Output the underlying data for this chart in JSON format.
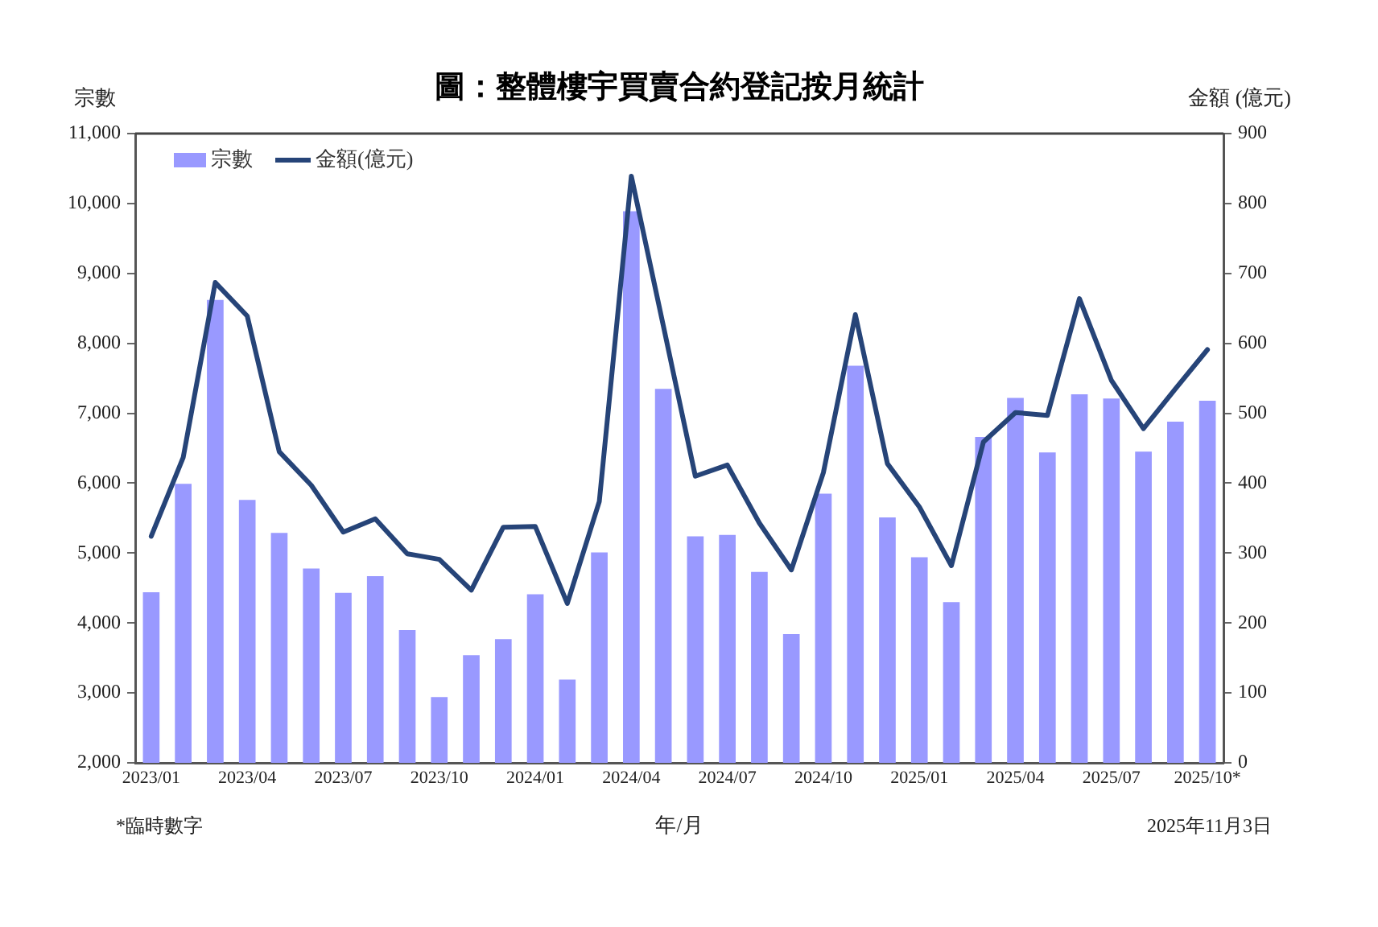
{
  "chart_data": {
    "type": "bar",
    "title": "圖：整體樓宇買賣合約登記按月統計",
    "xlabel": "年/月",
    "ylabel": "宗數",
    "y2label": "金額 (億元)",
    "categories": [
      "2023/01",
      null,
      null,
      "2023/04",
      null,
      null,
      "2023/07",
      null,
      null,
      "2023/10",
      null,
      null,
      "2024/01",
      null,
      null,
      "2024/04",
      null,
      null,
      "2024/07",
      null,
      null,
      "2024/10",
      null,
      null,
      "2025/01",
      null,
      null,
      "2025/04",
      null,
      null,
      "2025/07",
      null,
      null,
      "2025/10*"
    ],
    "series": [
      {
        "name": "宗數",
        "color": "#9999ff",
        "values": [
          4440,
          5990,
          8620,
          5760,
          5290,
          4780,
          4430,
          4670,
          3900,
          2940,
          3540,
          3770,
          4410,
          3190,
          5010,
          9890,
          7350,
          5240,
          5260,
          4730,
          3840,
          5850,
          7680,
          5510,
          4940,
          4300,
          6660,
          7220,
          6440,
          7270,
          7210,
          6450,
          6880,
          7180
        ]
      },
      {
        "name": "金額(億元)",
        "type": "line",
        "axis": "y2",
        "color": "#264478",
        "values": [
          324,
          437,
          687,
          639,
          445,
          397,
          330,
          349,
          299,
          291,
          247,
          337,
          338,
          228,
          374,
          839,
          625,
          410,
          426,
          343,
          276,
          415,
          641,
          428,
          366,
          282,
          459,
          501,
          497,
          664,
          547,
          478,
          535,
          591
        ]
      }
    ],
    "ylim": [
      2000,
      11000
    ],
    "yticks": [
      {
        "value": 2000,
        "label": "2,000"
      },
      {
        "value": 3000,
        "label": "3,000"
      },
      {
        "value": 4000,
        "label": "4,000"
      },
      {
        "value": 5000,
        "label": "5,000"
      },
      {
        "value": 6000,
        "label": "6,000"
      },
      {
        "value": 7000,
        "label": "7,000"
      },
      {
        "value": 8000,
        "label": "8,000"
      },
      {
        "value": 9000,
        "label": "9,000"
      },
      {
        "value": 10000,
        "label": "10,000"
      },
      {
        "value": 11000,
        "label": "11,000"
      }
    ],
    "y2lim": [
      0,
      900
    ],
    "y2ticks": [
      0,
      100,
      200,
      300,
      400,
      500,
      600,
      700,
      800,
      900
    ],
    "grid": false,
    "legend": "top left",
    "annotations": [
      "*臨時數字",
      "2025年11月3日"
    ]
  }
}
